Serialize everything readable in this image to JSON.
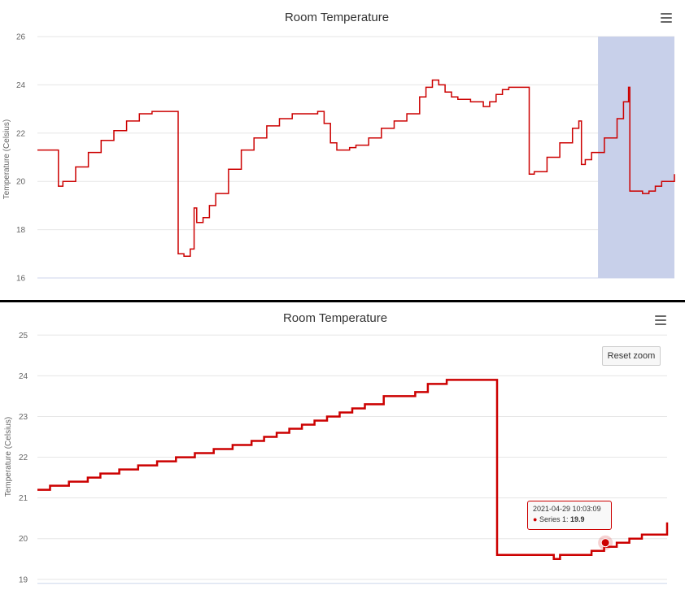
{
  "chart_data": [
    {
      "type": "line",
      "title": "Room Temperature",
      "ylabel": "Temperature (Celsius)",
      "xlabel": "",
      "ylim": [
        16,
        26
      ],
      "yticks": [
        16,
        18,
        20,
        22,
        24,
        26
      ],
      "xlim": [
        0,
        100
      ],
      "grid": true,
      "legend": "none",
      "line_color": "#cc0000",
      "selection_color": "#c8d0ea",
      "selection_range": [
        88.0,
        100.0
      ],
      "series": [
        {
          "x": [
            0,
            3,
            3.3,
            4,
            6,
            8,
            10,
            12,
            14,
            16,
            18,
            20,
            21,
            22,
            22.1,
            23,
            24,
            24.5,
            24.6,
            25,
            26,
            27,
            28,
            30,
            32,
            34,
            36,
            38,
            40,
            41,
            42,
            44,
            45,
            45.2,
            46,
            47,
            48,
            49,
            50,
            52,
            54,
            56,
            58,
            60,
            61,
            62,
            63,
            64,
            65,
            66,
            68,
            70,
            71,
            72,
            73,
            74,
            75,
            77,
            77.2,
            78,
            80,
            82,
            84,
            85,
            85.4,
            86,
            87,
            89,
            91,
            92,
            92.8,
            93,
            94,
            95,
            96,
            97,
            98,
            100
          ],
          "y": [
            21.3,
            21.3,
            19.8,
            20.0,
            20.6,
            21.2,
            21.7,
            22.1,
            22.5,
            22.8,
            22.9,
            22.9,
            22.9,
            22.9,
            17.0,
            16.9,
            17.2,
            17.2,
            18.9,
            18.3,
            18.5,
            19.0,
            19.5,
            20.5,
            21.3,
            21.8,
            22.3,
            22.6,
            22.8,
            22.8,
            22.8,
            22.9,
            22.4,
            22.4,
            21.6,
            21.3,
            21.3,
            21.4,
            21.5,
            21.8,
            22.2,
            22.5,
            22.8,
            23.5,
            23.9,
            24.2,
            24.0,
            23.7,
            23.5,
            23.4,
            23.3,
            23.1,
            23.3,
            23.6,
            23.8,
            23.9,
            23.9,
            23.9,
            20.3,
            20.4,
            21.0,
            21.6,
            22.2,
            22.5,
            20.7,
            20.9,
            21.2,
            21.8,
            22.6,
            23.3,
            23.9,
            19.6,
            19.6,
            19.5,
            19.6,
            19.8,
            20.0,
            20.3
          ]
        }
      ]
    },
    {
      "type": "line",
      "title": "Room Temperature",
      "ylabel": "Temperature (Celsius)",
      "xlabel": "",
      "ylim": [
        18.9,
        25.1
      ],
      "yticks": [
        19,
        20,
        21,
        22,
        23,
        24,
        25
      ],
      "xlim": [
        0,
        100
      ],
      "grid": true,
      "legend": "none",
      "line_color": "#cc0000",
      "series": [
        {
          "name": "Series 1",
          "x": [
            0,
            2,
            5,
            8,
            10,
            13,
            16,
            19,
            22,
            25,
            28,
            31,
            34,
            36,
            38,
            40,
            42,
            44,
            46,
            48,
            50,
            52,
            55,
            60,
            62,
            64,
            65,
            70,
            73,
            74,
            77,
            82,
            83,
            86,
            88,
            90,
            92,
            94,
            96,
            100
          ],
          "y": [
            21.2,
            21.3,
            21.4,
            21.5,
            21.6,
            21.7,
            21.8,
            21.9,
            22.0,
            22.1,
            22.2,
            22.3,
            22.4,
            22.5,
            22.6,
            22.7,
            22.8,
            22.9,
            23.0,
            23.1,
            23.2,
            23.3,
            23.5,
            23.6,
            23.8,
            23.8,
            23.9,
            23.9,
            19.6,
            19.6,
            19.6,
            19.5,
            19.6,
            19.6,
            19.7,
            19.8,
            19.9,
            20.0,
            20.1,
            20.4
          ]
        }
      ],
      "highlight": {
        "x": 90.2,
        "y": 19.9
      },
      "tooltip": {
        "date": "2021-04-29 10:03:09",
        "series_label": "Series 1: ",
        "value": "19.9"
      },
      "reset_zoom_label": "Reset zoom"
    }
  ]
}
